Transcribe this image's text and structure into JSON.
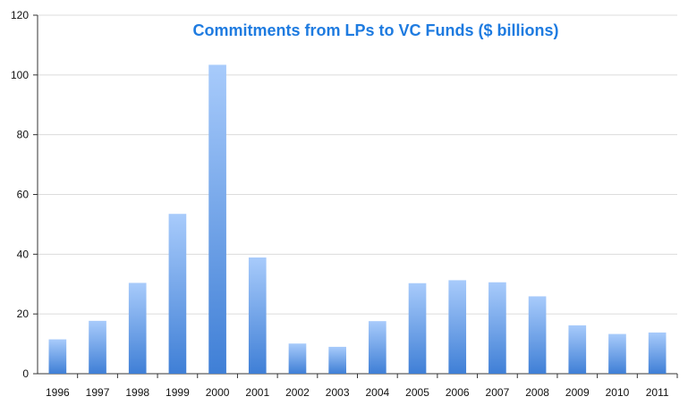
{
  "chart_data": {
    "type": "bar",
    "title": "Commitments from LPs to VC Funds ($ billions)",
    "categories": [
      "1996",
      "1997",
      "1998",
      "1999",
      "2000",
      "2001",
      "2002",
      "2003",
      "2004",
      "2005",
      "2006",
      "2007",
      "2008",
      "2009",
      "2010",
      "2011"
    ],
    "values": [
      11.5,
      17.7,
      30.4,
      53.5,
      103.4,
      38.9,
      10.1,
      9.0,
      17.6,
      30.3,
      31.3,
      30.6,
      25.9,
      16.2,
      13.3,
      13.8
    ],
    "ylim": [
      0,
      120
    ],
    "yticks": [
      0,
      20,
      40,
      60,
      80,
      100,
      120
    ],
    "xlabel": "",
    "ylabel": "",
    "grid": true,
    "legend": "none",
    "colors": {
      "bar_top": "#a8cbfb",
      "bar_bottom": "#3f7fd6",
      "title": "#1e7be0",
      "grid": "#dcdcdc",
      "axis": "#333333"
    }
  }
}
